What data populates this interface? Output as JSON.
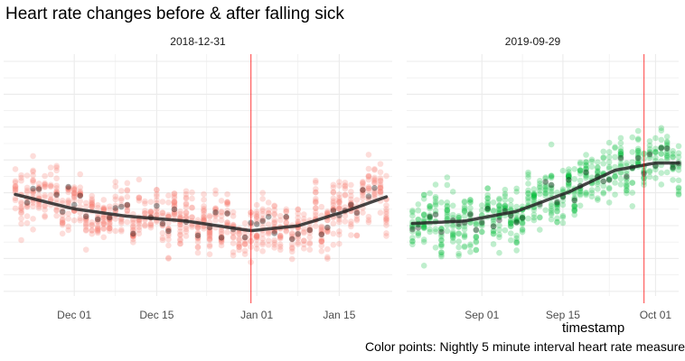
{
  "title": "Heart rate changes before & after falling sick",
  "xlabel": "timestamp",
  "caption": "Color points: Nightly 5 minute interval heart rate measure",
  "colors": {
    "panel1": "#f8766d",
    "panel2": "#00ba38",
    "smooth": "#262626",
    "vline": "#ff0000",
    "grid": "#ebebeb"
  },
  "chart_data": [
    {
      "type": "scatter",
      "panel_title": "2018-12-31",
      "color": "#f8766d",
      "x_range": [
        "2018-11-19",
        "2019-01-24"
      ],
      "x_ticks": [
        "Dec 01",
        "Dec 15",
        "Jan 01",
        "Jan 15"
      ],
      "x_tick_dates": [
        "2018-12-01",
        "2018-12-15",
        "2019-01-01",
        "2019-01-15"
      ],
      "vline": "2018-12-31",
      "grid": true,
      "y_labels_shown": false,
      "smooth": [
        {
          "x": "2018-11-21",
          "y": 0.42
        },
        {
          "x": "2018-12-01",
          "y": 0.36
        },
        {
          "x": "2018-12-10",
          "y": 0.33
        },
        {
          "x": "2018-12-20",
          "y": 0.31
        },
        {
          "x": "2018-12-31",
          "y": 0.27
        },
        {
          "x": "2019-01-08",
          "y": 0.29
        },
        {
          "x": "2019-01-16",
          "y": 0.35
        },
        {
          "x": "2019-01-23",
          "y": 0.41
        }
      ]
    },
    {
      "type": "scatter",
      "panel_title": "2019-09-29",
      "color": "#00ba38",
      "x_range": [
        "2019-08-19",
        "2019-10-05"
      ],
      "x_ticks": [
        "Sep 01",
        "Sep 15",
        "Oct 01"
      ],
      "x_tick_dates": [
        "2019-09-01",
        "2019-09-15",
        "2019-10-01"
      ],
      "vline": "2019-09-29",
      "grid": true,
      "y_labels_shown": false,
      "smooth": [
        {
          "x": "2019-08-20",
          "y": 0.3
        },
        {
          "x": "2019-08-29",
          "y": 0.31
        },
        {
          "x": "2019-09-07",
          "y": 0.35
        },
        {
          "x": "2019-09-16",
          "y": 0.43
        },
        {
          "x": "2019-09-24",
          "y": 0.52
        },
        {
          "x": "2019-10-01",
          "y": 0.55
        },
        {
          "x": "2019-10-05",
          "y": 0.55
        }
      ]
    }
  ]
}
